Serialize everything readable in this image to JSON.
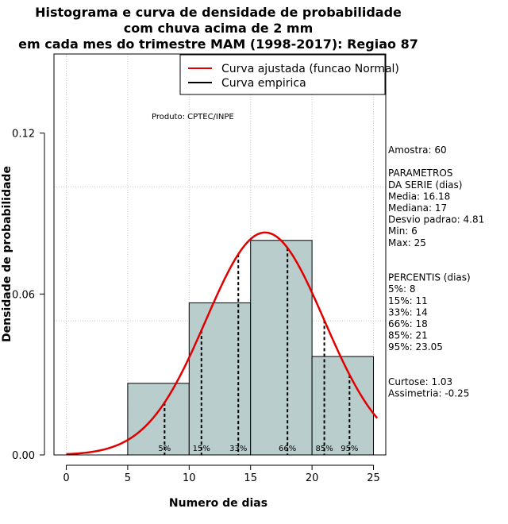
{
  "chart_data": {
    "type": "histogram",
    "title_lines": [
      "Histograma e curva de densidade de probabilidade",
      "com chuva acima de 2 mm",
      "em cada mes do trimestre MAM (1998-2017): Regiao 87"
    ],
    "xlabel": "Numero de dias",
    "ylabel": "Densidade de probabilidade",
    "xlim": [
      -1,
      26
    ],
    "ylim": [
      0,
      0.1495
    ],
    "x_ticks": [
      0,
      5,
      10,
      15,
      20,
      25
    ],
    "y_ticks": [
      0.0,
      0.06,
      0.12
    ],
    "y_tick_labels": [
      "0.00",
      "0.06",
      "0.12"
    ],
    "grid_x": [
      0,
      5,
      10,
      15,
      20,
      25
    ],
    "grid_y": [
      0,
      0.05,
      0.1
    ],
    "bars": [
      {
        "x0": 5,
        "x1": 10,
        "density": 0.0267
      },
      {
        "x0": 10,
        "x1": 15,
        "density": 0.0567
      },
      {
        "x0": 15,
        "x1": 20,
        "density": 0.08
      },
      {
        "x0": 20,
        "x1": 25,
        "density": 0.0367
      }
    ],
    "bar_color": "#b9cdcd",
    "normal_fit": {
      "mean": 16.18,
      "sd": 4.81,
      "x_from": 0,
      "x_to": 25.3,
      "color": "#e00000"
    },
    "percentile_lines": [
      {
        "label": "5%",
        "x": 8
      },
      {
        "label": "15%",
        "x": 11
      },
      {
        "label": "33%",
        "x": 14
      },
      {
        "label": "66%",
        "x": 18
      },
      {
        "label": "85%",
        "x": 21
      },
      {
        "label": "95%",
        "x": 23.05
      }
    ],
    "legend": {
      "position": "top-right",
      "entries": [
        {
          "label": "Curva ajustada (funcao Normal)",
          "color": "#e00000"
        },
        {
          "label": "Curva empirica",
          "color": "#000000"
        }
      ]
    },
    "annotation": "Produto: CPTEC/INPE",
    "stats_panel": [
      "Amostra: 60",
      "",
      " PARAMETROS",
      "DA SERIE (dias)",
      "  Media: 16.18",
      "  Mediana: 17",
      "  Desvio padrao: 4.81",
      "  Min: 6",
      "  Max: 25",
      "",
      "",
      "PERCENTIS (dias)",
      "  5%: 8",
      "  15%: 11",
      "  33%: 14",
      "  66%: 18",
      "  85%: 21",
      "  95%: 23.05",
      "",
      "",
      "   Curtose: 1.03",
      "Assimetria: -0.25"
    ]
  }
}
